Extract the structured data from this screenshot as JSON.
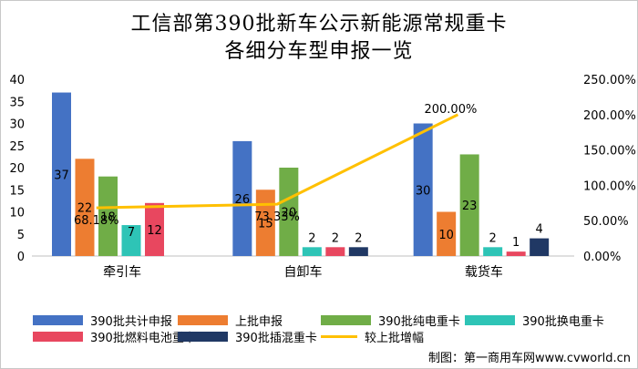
{
  "chart_data": {
    "type": "bar",
    "title": "工信部第390批新车公示新能源常规重卡",
    "subtitle": "各细分车型申报一览",
    "categories": [
      "牵引车",
      "自卸车",
      "载货车"
    ],
    "series": [
      {
        "name": "390批共计申报",
        "values": [
          37,
          26,
          30
        ],
        "color": "#4472C4"
      },
      {
        "name": "上批申报",
        "values": [
          22,
          15,
          10
        ],
        "color": "#ED7D31"
      },
      {
        "name": "390批纯电重卡",
        "values": [
          18,
          20,
          23
        ],
        "color": "#70AD47"
      },
      {
        "name": "390批换电重卡",
        "values": [
          7,
          2,
          2
        ],
        "color": "#2EC4B6"
      },
      {
        "name": "390批燃料电池重卡",
        "values": [
          12,
          2,
          1
        ],
        "color": "#E8475F"
      },
      {
        "name": "390批插混重卡",
        "values": [
          0,
          2,
          4
        ],
        "color": "#203864"
      }
    ],
    "line_series": {
      "name": "较上批增幅",
      "values": [
        68.18,
        73.33,
        200.0
      ],
      "labels": [
        "68.18%",
        "73.33%",
        "200.00%"
      ],
      "color": "#FFC000"
    },
    "ylim": [
      0,
      40
    ],
    "yticks": [
      "0",
      "5",
      "10",
      "15",
      "20",
      "25",
      "30",
      "35",
      "40"
    ],
    "y2lim": [
      0,
      250
    ],
    "y2ticks": [
      "0.00%",
      "50.00%",
      "100.00%",
      "150.00%",
      "200.00%",
      "250.00%"
    ],
    "grid": false,
    "legend_position": "bottom"
  },
  "credit": "制图：第一商用车网www.cvworld.cn"
}
